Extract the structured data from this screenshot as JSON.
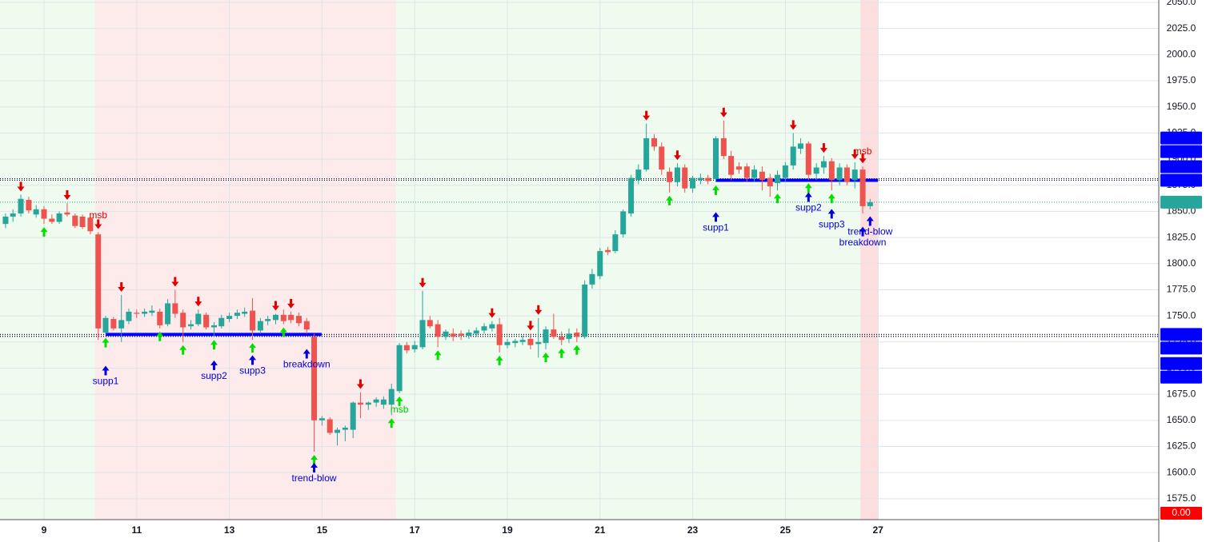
{
  "chart_data": {
    "type": "candlestick",
    "x": [
      8.17,
      8.33,
      8.5,
      8.67,
      8.83,
      9,
      9.17,
      9.33,
      9.5,
      9.67,
      9.83,
      10,
      10.17,
      10.33,
      10.5,
      10.67,
      10.83,
      11,
      11.17,
      11.33,
      11.5,
      11.67,
      11.83,
      12,
      12.17,
      12.33,
      12.5,
      12.67,
      12.83,
      13,
      13.17,
      13.33,
      13.5,
      13.67,
      13.83,
      14,
      14.17,
      14.33,
      14.5,
      14.67,
      14.83,
      15,
      15.17,
      15.33,
      15.5,
      15.67,
      15.83,
      16,
      16.17,
      16.33,
      16.5,
      16.67,
      16.83,
      17,
      17.17,
      17.33,
      17.5,
      17.67,
      17.83,
      18,
      18.17,
      18.33,
      18.5,
      18.67,
      18.83,
      19,
      19.17,
      19.33,
      19.5,
      19.67,
      19.83,
      20,
      20.17,
      20.33,
      20.5,
      20.67,
      20.83,
      21,
      21.17,
      21.33,
      21.5,
      21.67,
      21.83,
      22,
      22.17,
      22.33,
      22.5,
      22.67,
      22.83,
      23,
      23.17,
      23.33,
      23.5,
      23.67,
      23.83,
      24,
      24.17,
      24.33,
      24.5,
      24.67,
      24.83,
      25,
      25.17,
      25.33,
      25.5,
      25.67,
      25.83,
      26,
      26.17,
      26.33,
      26.5,
      26.67,
      26.83
    ],
    "open": [
      1838,
      1845,
      1848,
      1861,
      1847,
      1852,
      1843,
      1840,
      1849,
      1846,
      1845,
      1844,
      1828,
      1734,
      1747,
      1738,
      1745,
      1753,
      1752,
      1753,
      1754,
      1742,
      1762,
      1753,
      1740,
      1742,
      1751,
      1739,
      1740,
      1747,
      1750,
      1752,
      1755,
      1736,
      1745,
      1746,
      1751,
      1751,
      1750,
      1745,
      1730,
      1650,
      1651,
      1638,
      1641,
      1641,
      1667,
      1665,
      1667,
      1665,
      1665,
      1678,
      1722,
      1718,
      1720,
      1746,
      1742,
      1730,
      1733,
      1733,
      1731,
      1733,
      1736,
      1738,
      1742,
      1722,
      1724,
      1725,
      1728,
      1723,
      1724,
      1737,
      1730,
      1728,
      1734,
      1730,
      1780,
      1788,
      1813,
      1812,
      1828,
      1848,
      1880,
      1890,
      1920,
      1912,
      1888,
      1878,
      1892,
      1872,
      1880,
      1882,
      1881,
      1920,
      1903,
      1893,
      1893,
      1882,
      1888,
      1882,
      1877,
      1882,
      1894,
      1910,
      1915,
      1886,
      1892,
      1898,
      1880,
      1892,
      1880,
      1890,
      1855
    ],
    "high": [
      1848,
      1852,
      1866,
      1864,
      1856,
      1855,
      1847,
      1850,
      1858,
      1848,
      1847,
      1848,
      1830,
      1750,
      1749,
      1770,
      1757,
      1756,
      1757,
      1760,
      1757,
      1766,
      1775,
      1756,
      1746,
      1756,
      1753,
      1744,
      1751,
      1753,
      1756,
      1758,
      1767,
      1748,
      1750,
      1752,
      1756,
      1754,
      1753,
      1748,
      1733,
      1654,
      1653,
      1643,
      1645,
      1668,
      1677,
      1668,
      1672,
      1673,
      1685,
      1724,
      1725,
      1726,
      1774,
      1750,
      1746,
      1737,
      1738,
      1736,
      1737,
      1739,
      1743,
      1745,
      1748,
      1728,
      1728,
      1731,
      1733,
      1748,
      1740,
      1752,
      1735,
      1738,
      1738,
      1784,
      1795,
      1815,
      1816,
      1832,
      1852,
      1885,
      1895,
      1934,
      1924,
      1916,
      1892,
      1896,
      1895,
      1884,
      1886,
      1885,
      1922,
      1937,
      1908,
      1897,
      1896,
      1894,
      1893,
      1886,
      1889,
      1897,
      1925,
      1920,
      1917,
      1896,
      1903,
      1901,
      1896,
      1895,
      1897,
      1893,
      1862
    ],
    "low": [
      1834,
      1840,
      1845,
      1848,
      1844,
      1838,
      1838,
      1838,
      1845,
      1834,
      1833,
      1828,
      1727,
      1732,
      1736,
      1725,
      1742,
      1748,
      1749,
      1750,
      1738,
      1740,
      1748,
      1725,
      1737,
      1740,
      1737,
      1730,
      1738,
      1744,
      1747,
      1749,
      1727,
      1733,
      1741,
      1742,
      1742,
      1743,
      1740,
      1733,
      1620,
      1645,
      1636,
      1626,
      1630,
      1633,
      1652,
      1660,
      1663,
      1661,
      1655,
      1676,
      1714,
      1715,
      1718,
      1738,
      1720,
      1727,
      1726,
      1727,
      1728,
      1730,
      1733,
      1735,
      1715,
      1719,
      1720,
      1722,
      1718,
      1710,
      1718,
      1728,
      1722,
      1724,
      1725,
      1728,
      1776,
      1785,
      1808,
      1810,
      1825,
      1845,
      1876,
      1888,
      1908,
      1885,
      1868,
      1874,
      1868,
      1868,
      1876,
      1876,
      1878,
      1900,
      1880,
      1886,
      1878,
      1878,
      1870,
      1864,
      1870,
      1878,
      1890,
      1905,
      1880,
      1880,
      1886,
      1870,
      1875,
      1875,
      1872,
      1848,
      1852
    ],
    "close": [
      1845,
      1848,
      1862,
      1851,
      1852,
      1843,
      1840,
      1848,
      1847,
      1836,
      1835,
      1831,
      1738,
      1748,
      1738,
      1746,
      1754,
      1752,
      1754,
      1755,
      1741,
      1762,
      1752,
      1739,
      1742,
      1752,
      1739,
      1741,
      1748,
      1750,
      1753,
      1754,
      1736,
      1745,
      1747,
      1751,
      1745,
      1746,
      1743,
      1737,
      1650,
      1652,
      1638,
      1641,
      1643,
      1667,
      1665,
      1667,
      1670,
      1670,
      1680,
      1722,
      1717,
      1722,
      1746,
      1740,
      1730,
      1735,
      1730,
      1731,
      1734,
      1736,
      1740,
      1742,
      1722,
      1725,
      1726,
      1727,
      1722,
      1725,
      1737,
      1730,
      1727,
      1733,
      1730,
      1780,
      1790,
      1812,
      1811,
      1828,
      1850,
      1882,
      1890,
      1920,
      1912,
      1890,
      1878,
      1892,
      1872,
      1882,
      1882,
      1879,
      1920,
      1903,
      1885,
      1890,
      1882,
      1890,
      1880,
      1874,
      1885,
      1894,
      1912,
      1915,
      1885,
      1892,
      1898,
      1880,
      1892,
      1878,
      1890,
      1855,
      1858.8
    ],
    "up_color": "#26a69a",
    "down_color": "#ef5350",
    "sell_signals": [
      8.5,
      9.5,
      10.17,
      10.67,
      11.83,
      12.33,
      14,
      14.33,
      15.83,
      17.17,
      18.67,
      19.5,
      19.67,
      22,
      22.67,
      23.67,
      25.17,
      25.83,
      26.5,
      26.67
    ],
    "buy_signals": [
      9,
      10.33,
      11.5,
      12,
      12.67,
      13.5,
      14.17,
      14.83,
      16.5,
      16.67,
      17.5,
      18.83,
      19.83,
      20.17,
      20.5,
      22.5,
      23.5,
      24.83,
      25.5,
      26
    ],
    "sell_color": "#e00000",
    "buy_color": "#00e000",
    "annotations": [
      {
        "text": "msb",
        "x": 10.17,
        "y": 1846,
        "color": "#e00000"
      },
      {
        "text": "supp1",
        "x": 10.33,
        "y": 1687,
        "color": "#0000dd"
      },
      {
        "text": "supp2",
        "x": 12.67,
        "y": 1692,
        "color": "#0000dd"
      },
      {
        "text": "supp3",
        "x": 13.5,
        "y": 1697,
        "color": "#0000dd"
      },
      {
        "text": "breakdown",
        "x": 14.67,
        "y": 1703,
        "color": "#0000dd"
      },
      {
        "text": "trend-blow",
        "x": 14.83,
        "y": 1594,
        "color": "#0000dd"
      },
      {
        "text": "msb",
        "x": 16.67,
        "y": 1660,
        "color": "#00cc00"
      },
      {
        "text": "supp1",
        "x": 23.5,
        "y": 1834,
        "color": "#0000dd"
      },
      {
        "text": "supp2",
        "x": 25.5,
        "y": 1853,
        "color": "#0000dd"
      },
      {
        "text": "supp3",
        "x": 26,
        "y": 1837,
        "color": "#0000dd"
      },
      {
        "text": "trend-blow",
        "x": 26.83,
        "y": 1830,
        "color": "#0000dd"
      },
      {
        "text": "breakdown",
        "x": 26.67,
        "y": 1820,
        "color": "#0000dd"
      },
      {
        "text": "msb",
        "x": 26.67,
        "y": 1907,
        "color": "#e00000"
      }
    ],
    "levels": [
      {
        "price": 1732.2,
        "from": 10.33,
        "to": 14.99,
        "color": "#0000ff"
      },
      {
        "price": 1879.8,
        "from": 23.5,
        "to": 27.0,
        "color": "#0000ff"
      }
    ],
    "zones": [
      {
        "from": 8.05,
        "to": 10.1,
        "color": "#effbee"
      },
      {
        "from": 10.1,
        "to": 16.6,
        "color": "#fdebeb"
      },
      {
        "from": 16.6,
        "to": 26.62,
        "color": "#effbee"
      },
      {
        "from": 26.62,
        "to": 27.01,
        "color": "#fddede"
      }
    ],
    "price_tags": [
      {
        "value": 1881.2,
        "color": "#0000ff"
      },
      {
        "value": 1881.2,
        "color": "#0000ff"
      },
      {
        "value": 1879.8,
        "color": "#0000ff"
      },
      {
        "value": 1879.8,
        "color": "#0000ff"
      },
      {
        "value": 1858.8,
        "color": "#26a69a"
      },
      {
        "value": 1732.2,
        "color": "#0000ff"
      },
      {
        "value": 1732.2,
        "color": "#0000ff"
      },
      {
        "value": 1730.4,
        "color": "#0000ff"
      },
      {
        "value": 1730.4,
        "color": "#0000ff"
      },
      {
        "value": 0,
        "label": "0.00",
        "color": "#ff0000"
      }
    ],
    "xlim": [
      8.05,
      33.06
    ],
    "xticks": [
      9,
      11,
      13,
      15,
      17,
      19,
      21,
      23,
      25,
      27
    ],
    "ylim": [
      1555.0,
      2052.3
    ],
    "yticks": [
      {
        "value": 1575,
        "label": "1575.0"
      },
      {
        "value": 1600,
        "label": "1600.0"
      },
      {
        "value": 1625,
        "label": "1625.0"
      },
      {
        "value": 1650,
        "label": "1650.0"
      },
      {
        "value": 1675,
        "label": "1675.0"
      },
      {
        "value": 1700,
        "label": "1700.0"
      },
      {
        "value": 1725,
        "label": "1725.0"
      },
      {
        "value": 1750,
        "label": "1750.0"
      },
      {
        "value": 1775,
        "label": "1775.0"
      },
      {
        "value": 1800,
        "label": "1800.0"
      },
      {
        "value": 1825,
        "label": "1825.0"
      },
      {
        "value": 1850,
        "label": "1850.0"
      },
      {
        "value": 1875,
        "label": "1875.0"
      },
      {
        "value": 1900,
        "label": "1900.0"
      },
      {
        "value": 1925,
        "label": "1925.0"
      },
      {
        "value": 1950,
        "label": "1950.0"
      },
      {
        "value": 1975,
        "label": "1975.0"
      },
      {
        "value": 2000,
        "label": "2000.0"
      },
      {
        "value": 2025,
        "label": "2025.0"
      },
      {
        "value": 2050,
        "label": "2050.0"
      }
    ],
    "grid": true
  }
}
